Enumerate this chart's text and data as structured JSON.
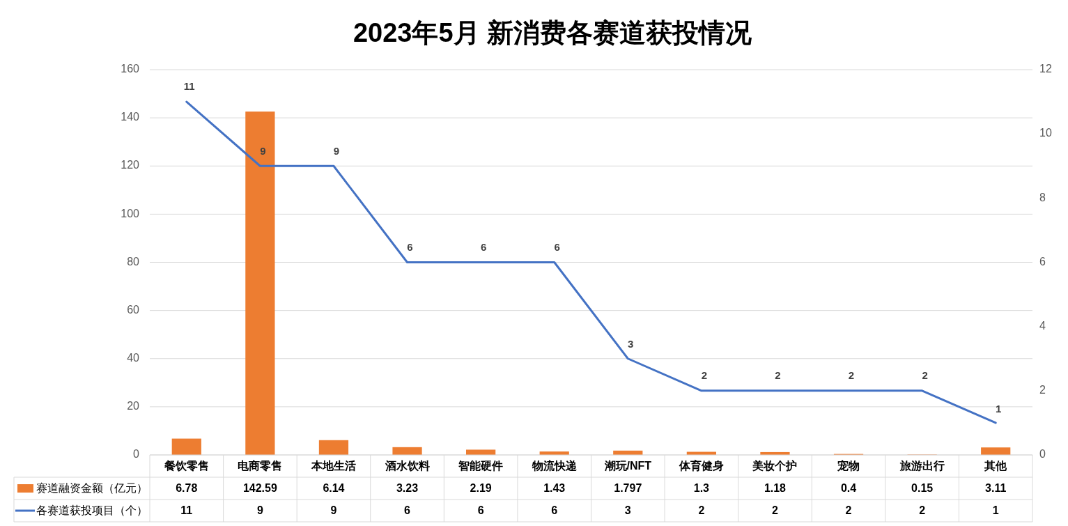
{
  "chart_data": {
    "type": "bar",
    "title": "2023年5月 新消费各赛道获投情况",
    "categories": [
      "餐饮零售",
      "电商零售",
      "本地生活",
      "酒水饮料",
      "智能硬件",
      "物流快递",
      "潮玩/NFT",
      "体育健身",
      "美妆个护",
      "宠物",
      "旅游出行",
      "其他"
    ],
    "series": [
      {
        "name": "赛道融资金额（亿元）",
        "color": "#ed7d31",
        "values": [
          6.78,
          142.59,
          6.14,
          3.23,
          2.19,
          1.43,
          1.797,
          1.3,
          1.18,
          0.4,
          0.15,
          3.11
        ]
      },
      {
        "name": "各赛道获投项目（个）",
        "type": "line",
        "axis": "y2",
        "color": "#4472c4",
        "values": [
          11,
          9,
          9,
          6,
          6,
          6,
          3,
          2,
          2,
          2,
          2,
          1
        ]
      }
    ],
    "annotations": [
      {
        "text": "11",
        "x": "餐饮零售",
        "y": 147
      },
      {
        "text": "9",
        "x": "电商零售",
        "y": 120
      },
      {
        "text": "9",
        "x": "本地生活",
        "y": 120
      },
      {
        "text": "6",
        "x": "酒水饮料",
        "y": 80
      },
      {
        "text": "6",
        "x": "智能硬件",
        "y": 80
      },
      {
        "text": "6",
        "x": "物流快递",
        "y": 80
      },
      {
        "text": "3",
        "x": "潮玩/NFT",
        "y": 40
      },
      {
        "text": "2",
        "x": "体育健身",
        "y": 27
      },
      {
        "text": "2",
        "x": "美妆个护",
        "y": 27
      },
      {
        "text": "2",
        "x": "宠物",
        "y": 27
      },
      {
        "text": "2",
        "x": "旅游出行",
        "y": 27
      },
      {
        "text": "1",
        "x": "其他",
        "y": 13
      }
    ],
    "ylim": [
      0,
      160
    ],
    "yticks": [
      0,
      20,
      40,
      60,
      80,
      100,
      120,
      140,
      160
    ],
    "y2lim": [
      0,
      12
    ],
    "y2ticks": [
      0,
      2,
      4,
      6,
      8,
      10,
      12
    ],
    "grid": "y",
    "legend": "bottom",
    "data_labels": true,
    "marker": "none",
    "line_style": "solid"
  }
}
